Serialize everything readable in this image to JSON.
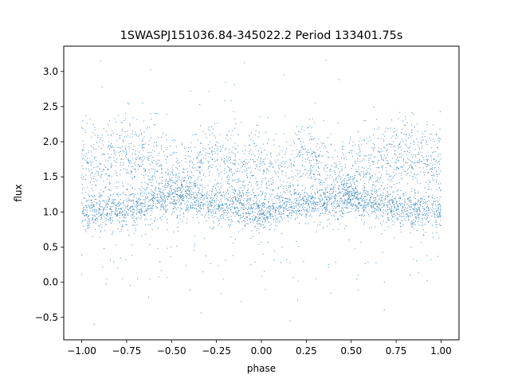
{
  "chart_data": {
    "type": "scatter",
    "title": "1SWASPJ151036.84-345022.2 Period 133401.75s",
    "xlabel": "phase",
    "ylabel": "flux",
    "xlim": [
      -1.1,
      1.1
    ],
    "ylim": [
      -0.82,
      3.36
    ],
    "xticks": [
      -1.0,
      -0.75,
      -0.5,
      -0.25,
      0.0,
      0.25,
      0.5,
      0.75,
      1.0
    ],
    "xtick_labels": [
      "−1.00",
      "−0.75",
      "−0.50",
      "−0.25",
      "0.00",
      "0.25",
      "0.50",
      "0.75",
      "1.00"
    ],
    "yticks": [
      -0.5,
      0.0,
      0.5,
      1.0,
      1.5,
      2.0,
      2.5,
      3.0
    ],
    "ytick_labels": [
      "−0.5",
      "0.0",
      "0.5",
      "1.0",
      "1.5",
      "2.0",
      "2.5",
      "3.0"
    ],
    "grid": false,
    "legend": false,
    "marker_color": "#1f77b4",
    "series": [
      {
        "x_range": [
          -1.0,
          1.0
        ],
        "profile": {
          "phase": [
            0.0,
            0.05,
            0.1,
            0.15,
            0.2,
            0.25,
            0.3,
            0.35,
            0.4,
            0.45,
            0.5,
            0.55,
            0.6,
            0.65,
            0.7,
            0.75,
            0.8,
            0.85,
            0.9,
            0.95,
            1.0
          ],
          "lower_band_flux": [
            1.0,
            1.02,
            1.05,
            1.08,
            1.1,
            1.1,
            1.12,
            1.15,
            1.17,
            1.2,
            1.22,
            1.18,
            1.15,
            1.1,
            1.08,
            1.06,
            1.05,
            1.03,
            1.02,
            1.0,
            1.0
          ],
          "upper_band_flux": [
            1.7,
            1.55,
            1.5,
            1.6,
            1.7,
            1.75,
            1.7,
            1.6,
            1.5,
            1.45,
            1.4,
            1.55,
            1.7,
            1.8,
            1.75,
            1.8,
            1.85,
            1.8,
            1.75,
            1.7,
            1.7
          ]
        },
        "flux_range": [
          -0.6,
          3.2
        ]
      }
    ]
  }
}
